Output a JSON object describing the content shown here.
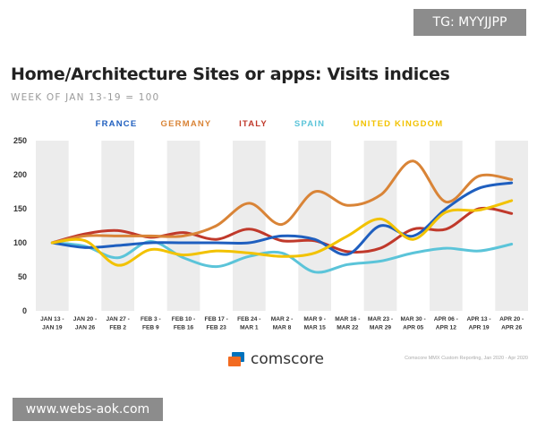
{
  "watermarks": {
    "top": "TG: MYYJJPP",
    "bottom": "www.webs-aok.com"
  },
  "header": {
    "title": "Home/Architecture Sites or apps: Visits indices",
    "subtitle": "WEEK OF JAN 13-19 = 100"
  },
  "footer": {
    "brand": "comscore",
    "credit": "Comscore MMX Custom Reporting, Jan 2020 - Apr 2020"
  },
  "colors": {
    "band": "#ececec",
    "axis_text": "#333333",
    "logo_orange": "#f26b21",
    "logo_blue": "#0072bc"
  },
  "chart_data": {
    "type": "line",
    "title": "Home/Architecture Sites or apps: Visits indices",
    "subtitle": "WEEK OF JAN 13-19 = 100",
    "xlabel": "",
    "ylabel": "",
    "ylim": [
      0,
      250
    ],
    "yticks": [
      0,
      50,
      100,
      150,
      200,
      250
    ],
    "grid": "alternating vertical bands",
    "legend_position": "top",
    "categories": [
      [
        "JAN 13 -",
        "JAN 19"
      ],
      [
        "JAN 20 -",
        "JAN 26"
      ],
      [
        "JAN 27 -",
        "FEB 2"
      ],
      [
        "FEB 3 -",
        "FEB 9"
      ],
      [
        "FEB 10 -",
        "FEB 16"
      ],
      [
        "FEB 17 -",
        "FEB 23"
      ],
      [
        "FEB 24 -",
        "MAR 1"
      ],
      [
        "MAR 2 -",
        "MAR 8"
      ],
      [
        "MAR 9 -",
        "MAR 15"
      ],
      [
        "MAR 16 -",
        "MAR 22"
      ],
      [
        "MAR 23 -",
        "MAR 29"
      ],
      [
        "MAR 30 -",
        "APR 05"
      ],
      [
        "APR 06 -",
        "APR 12"
      ],
      [
        "APR 13 -",
        "APR 19"
      ],
      [
        "APR 20 -",
        "APR 26"
      ]
    ],
    "series": [
      {
        "name": "FRANCE",
        "color": "#1f5fbf",
        "values": [
          100,
          93,
          96,
          100,
          100,
          100,
          100,
          110,
          105,
          83,
          125,
          110,
          150,
          180,
          188
        ]
      },
      {
        "name": "GERMANY",
        "color": "#d98437",
        "values": [
          100,
          110,
          110,
          110,
          110,
          125,
          158,
          127,
          175,
          155,
          170,
          220,
          160,
          198,
          193
        ]
      },
      {
        "name": "ITALY",
        "color": "#c0392b",
        "values": [
          100,
          113,
          118,
          108,
          115,
          105,
          120,
          103,
          103,
          87,
          92,
          120,
          120,
          150,
          143
        ]
      },
      {
        "name": "SPAIN",
        "color": "#5bc4d9",
        "values": [
          100,
          95,
          78,
          102,
          78,
          65,
          80,
          85,
          57,
          68,
          73,
          85,
          92,
          88,
          98
        ]
      },
      {
        "name": "UNITED KINGDOM",
        "color": "#f2c200",
        "values": [
          100,
          103,
          67,
          90,
          82,
          88,
          85,
          80,
          85,
          110,
          135,
          105,
          145,
          148,
          162
        ]
      }
    ]
  }
}
